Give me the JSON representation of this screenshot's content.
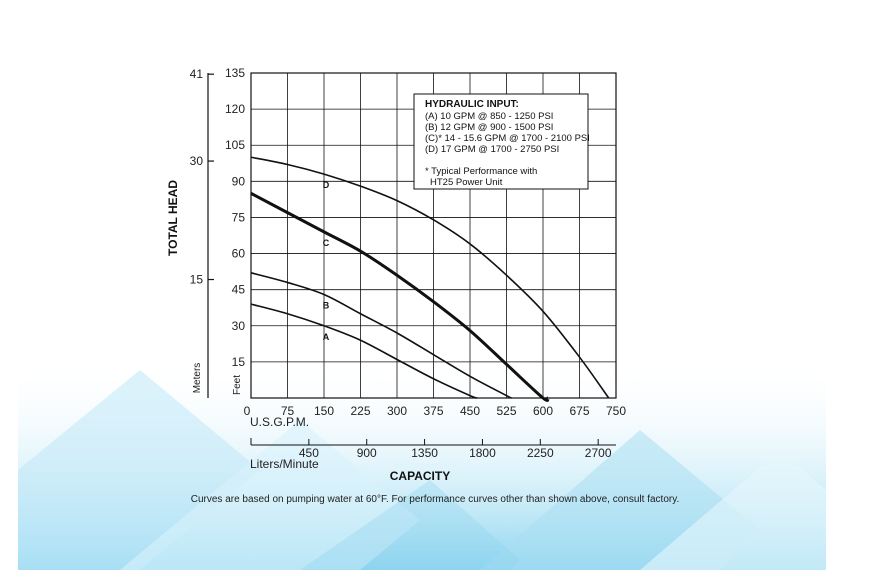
{
  "chart_data": {
    "type": "line",
    "xlabel": "CAPACITY",
    "ylabel": "TOTAL HEAD",
    "x_axis_primary": {
      "unit_label": "U.S.G.P.M.",
      "range": [
        0,
        750
      ],
      "ticks": [
        "0",
        "75",
        "150",
        "225",
        "300",
        "375",
        "450",
        "525",
        "600",
        "675",
        "750"
      ]
    },
    "x_axis_secondary": {
      "unit_label": "Liters/Minute",
      "ticks": [
        "450",
        "900",
        "1350",
        "1800",
        "2250",
        "2700"
      ]
    },
    "y_axis_feet": {
      "unit_label": "Feet",
      "range": [
        0,
        135
      ],
      "ticks": [
        "0",
        "15",
        "30",
        "45",
        "60",
        "75",
        "90",
        "105",
        "120",
        "135"
      ]
    },
    "y_axis_meters": {
      "unit_label": "Meters",
      "ticks": [
        "15",
        "30",
        "41"
      ]
    },
    "grid": true,
    "legend": {
      "title": "HYDRAULIC INPUT:",
      "lines": [
        "(A) 10 GPM @ 850 - 1250 PSI",
        "(B) 12 GPM @ 900 - 1500 PSI",
        "(C)* 14 - 15.6 GPM @ 1700 - 2100 PSI",
        "(D) 17 GPM @ 1700 - 2750 PSI"
      ],
      "note_lines": [
        "* Typical Performance with",
        "HT25 Power Unit"
      ],
      "placement": "top-right"
    },
    "series": [
      {
        "name": "A",
        "x": [
          0,
          75,
          150,
          225,
          300,
          375,
          450,
          465
        ],
        "y": [
          39,
          35,
          30,
          24,
          16,
          8,
          1,
          0
        ],
        "bold": false
      },
      {
        "name": "B",
        "x": [
          0,
          75,
          150,
          225,
          300,
          375,
          450,
          525,
          535
        ],
        "y": [
          52,
          48,
          43,
          35,
          27,
          18,
          9,
          1,
          0
        ],
        "bold": false
      },
      {
        "name": "C",
        "x": [
          0,
          75,
          150,
          225,
          300,
          375,
          450,
          525,
          600,
          610
        ],
        "y": [
          85,
          77,
          69,
          61,
          51,
          40,
          28,
          14,
          0,
          0
        ],
        "bold": true
      },
      {
        "name": "D",
        "x": [
          0,
          75,
          150,
          225,
          300,
          375,
          450,
          525,
          600,
          675,
          735
        ],
        "y": [
          100,
          97,
          93,
          88,
          82,
          74,
          64,
          51,
          36,
          17,
          0
        ],
        "bold": false
      }
    ]
  },
  "footnote": "Curves are based on pumping water at 60°F. For performance curves other than shown above, consult factory."
}
